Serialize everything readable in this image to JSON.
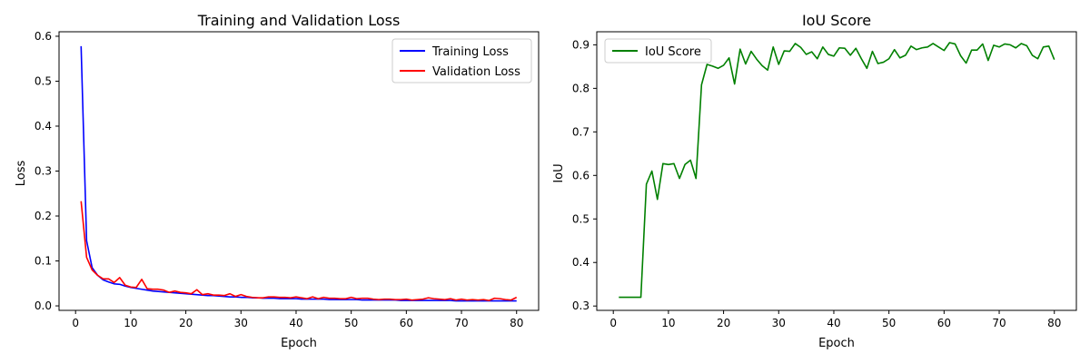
{
  "chart_data": [
    {
      "type": "line",
      "title": "Training and Validation Loss",
      "xlabel": "Epoch",
      "ylabel": "Loss",
      "xlim": [
        -3,
        84
      ],
      "ylim": [
        -0.01,
        0.61
      ],
      "xticks": [
        0,
        10,
        20,
        30,
        40,
        50,
        60,
        70,
        80
      ],
      "yticks": [
        0.0,
        0.1,
        0.2,
        0.3,
        0.4,
        0.5,
        0.6
      ],
      "ytick_labels": [
        "0.0",
        "0.1",
        "0.2",
        "0.3",
        "0.4",
        "0.5",
        "0.6"
      ],
      "legend_position": "upper right",
      "grid": false,
      "x": [
        1,
        2,
        3,
        4,
        5,
        6,
        7,
        8,
        9,
        10,
        11,
        12,
        13,
        14,
        15,
        16,
        17,
        18,
        19,
        20,
        21,
        22,
        23,
        24,
        25,
        26,
        27,
        28,
        29,
        30,
        31,
        32,
        33,
        34,
        35,
        36,
        37,
        38,
        39,
        40,
        41,
        42,
        43,
        44,
        45,
        46,
        47,
        48,
        49,
        50,
        51,
        52,
        53,
        54,
        55,
        56,
        57,
        58,
        59,
        60,
        61,
        62,
        63,
        64,
        65,
        66,
        67,
        68,
        69,
        70,
        71,
        72,
        73,
        74,
        75,
        76,
        77,
        78,
        79,
        80
      ],
      "series": [
        {
          "name": "Training Loss",
          "color": "#0000ff",
          "values": [
            0.578,
            0.145,
            0.085,
            0.068,
            0.058,
            0.053,
            0.049,
            0.048,
            0.044,
            0.041,
            0.039,
            0.037,
            0.035,
            0.033,
            0.032,
            0.031,
            0.03,
            0.029,
            0.028,
            0.027,
            0.026,
            0.025,
            0.024,
            0.023,
            0.023,
            0.022,
            0.021,
            0.02,
            0.02,
            0.019,
            0.019,
            0.018,
            0.018,
            0.017,
            0.017,
            0.017,
            0.016,
            0.016,
            0.016,
            0.016,
            0.015,
            0.015,
            0.015,
            0.015,
            0.015,
            0.014,
            0.014,
            0.014,
            0.014,
            0.014,
            0.014,
            0.013,
            0.013,
            0.013,
            0.013,
            0.013,
            0.013,
            0.013,
            0.012,
            0.012,
            0.012,
            0.012,
            0.012,
            0.012,
            0.012,
            0.012,
            0.012,
            0.012,
            0.011,
            0.011,
            0.011,
            0.011,
            0.011,
            0.011,
            0.011,
            0.011,
            0.011,
            0.011,
            0.011,
            0.011
          ]
        },
        {
          "name": "Validation Loss",
          "color": "#ff0000",
          "values": [
            0.233,
            0.108,
            0.08,
            0.068,
            0.06,
            0.06,
            0.052,
            0.063,
            0.046,
            0.042,
            0.041,
            0.059,
            0.038,
            0.037,
            0.037,
            0.035,
            0.03,
            0.033,
            0.03,
            0.029,
            0.027,
            0.036,
            0.025,
            0.027,
            0.024,
            0.024,
            0.023,
            0.027,
            0.021,
            0.025,
            0.021,
            0.019,
            0.018,
            0.018,
            0.02,
            0.02,
            0.019,
            0.019,
            0.018,
            0.02,
            0.018,
            0.016,
            0.02,
            0.016,
            0.019,
            0.017,
            0.017,
            0.016,
            0.016,
            0.019,
            0.016,
            0.017,
            0.017,
            0.015,
            0.014,
            0.015,
            0.015,
            0.014,
            0.014,
            0.015,
            0.013,
            0.014,
            0.015,
            0.018,
            0.016,
            0.015,
            0.014,
            0.016,
            0.013,
            0.015,
            0.013,
            0.014,
            0.013,
            0.014,
            0.012,
            0.017,
            0.016,
            0.014,
            0.013,
            0.019
          ]
        }
      ]
    },
    {
      "type": "line",
      "title": "IoU Score",
      "xlabel": "Epoch",
      "ylabel": "IoU",
      "xlim": [
        -3,
        84
      ],
      "ylim": [
        0.29,
        0.93
      ],
      "xticks": [
        0,
        10,
        20,
        30,
        40,
        50,
        60,
        70,
        80
      ],
      "yticks": [
        0.3,
        0.4,
        0.5,
        0.6,
        0.7,
        0.8,
        0.9
      ],
      "ytick_labels": [
        "0.3",
        "0.4",
        "0.5",
        "0.6",
        "0.7",
        "0.8",
        "0.9"
      ],
      "legend_position": "upper left",
      "grid": false,
      "x": [
        1,
        2,
        3,
        4,
        5,
        6,
        7,
        8,
        9,
        10,
        11,
        12,
        13,
        14,
        15,
        16,
        17,
        18,
        19,
        20,
        21,
        22,
        23,
        24,
        25,
        26,
        27,
        28,
        29,
        30,
        31,
        32,
        33,
        34,
        35,
        36,
        37,
        38,
        39,
        40,
        41,
        42,
        43,
        44,
        45,
        46,
        47,
        48,
        49,
        50,
        51,
        52,
        53,
        54,
        55,
        56,
        57,
        58,
        59,
        60,
        61,
        62,
        63,
        64,
        65,
        66,
        67,
        68,
        69,
        70,
        71,
        72,
        73,
        74,
        75,
        76,
        77,
        78,
        79,
        80
      ],
      "series": [
        {
          "name": "IoU Score",
          "color": "#008000",
          "values": [
            0.32,
            0.32,
            0.32,
            0.32,
            0.32,
            0.58,
            0.61,
            0.545,
            0.627,
            0.625,
            0.627,
            0.593,
            0.625,
            0.635,
            0.593,
            0.808,
            0.855,
            0.851,
            0.846,
            0.853,
            0.87,
            0.81,
            0.89,
            0.856,
            0.885,
            0.867,
            0.852,
            0.842,
            0.895,
            0.855,
            0.886,
            0.885,
            0.903,
            0.894,
            0.878,
            0.884,
            0.868,
            0.895,
            0.878,
            0.874,
            0.893,
            0.892,
            0.876,
            0.892,
            0.868,
            0.846,
            0.885,
            0.857,
            0.86,
            0.868,
            0.889,
            0.87,
            0.876,
            0.897,
            0.889,
            0.893,
            0.895,
            0.903,
            0.895,
            0.887,
            0.905,
            0.902,
            0.875,
            0.858,
            0.888,
            0.888,
            0.902,
            0.864,
            0.899,
            0.895,
            0.902,
            0.9,
            0.893,
            0.903,
            0.898,
            0.876,
            0.868,
            0.895,
            0.897,
            0.866
          ]
        }
      ]
    }
  ]
}
